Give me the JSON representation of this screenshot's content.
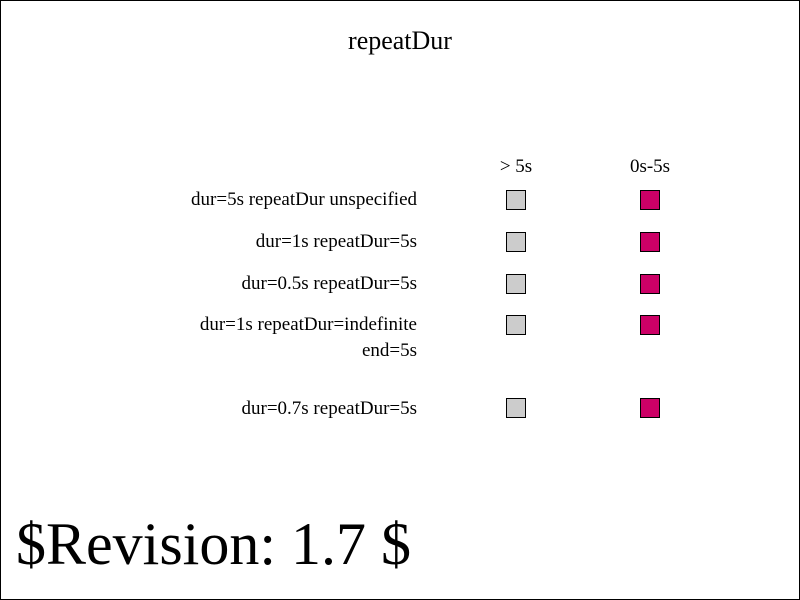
{
  "title": "repeatDur",
  "columns": [
    "> 5s",
    "0s-5s"
  ],
  "rows": [
    {
      "label": "dur=5s repeatDur unspecified"
    },
    {
      "label": "dur=1s repeatDur=5s"
    },
    {
      "label": "dur=0.5s repeatDur=5s"
    },
    {
      "label": "dur=1s repeatDur=indefinite\nend=5s"
    },
    {
      "label": "dur=0.7s repeatDur=5s"
    }
  ],
  "colors": {
    "col1_square": "#cccccc",
    "col2_square": "#cc0066",
    "border": "#000000",
    "background": "#ffffff"
  },
  "revision": "$Revision: 1.7 $"
}
